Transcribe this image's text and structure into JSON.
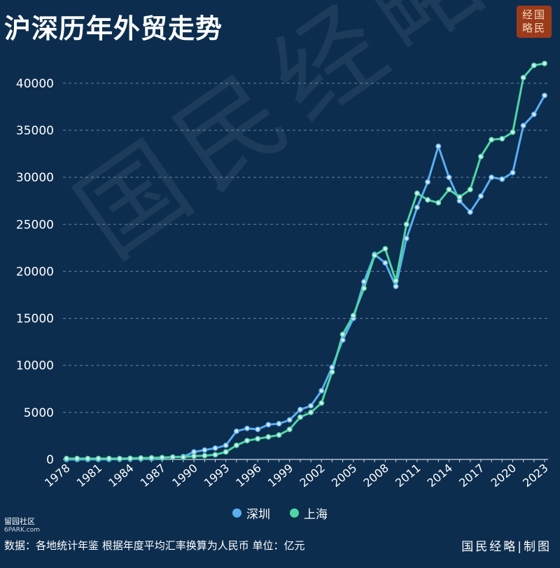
{
  "title": "沪深历年外贸走势",
  "logo_text": "经国略民",
  "watermark_text": "国民经略",
  "site_tag": {
    "line1": "留园社区",
    "line2": "6PARK.com"
  },
  "footer_source": "数据：各地统计年鉴 根据年度平均汇率换算为人民币 单位：亿元",
  "footer_credit": "国民经略|制图",
  "legend": [
    {
      "name": "深圳",
      "color": "#5aaef0"
    },
    {
      "name": "上海",
      "color": "#4fd6a5"
    }
  ],
  "chart_data": {
    "type": "line",
    "title": "沪深历年外贸走势",
    "xlabel": "",
    "ylabel": "",
    "unit": "亿元",
    "ylim": [
      0,
      42000
    ],
    "yticks": [
      0,
      5000,
      10000,
      15000,
      20000,
      25000,
      30000,
      35000,
      40000
    ],
    "xticks": [
      1978,
      1981,
      1984,
      1987,
      1990,
      1993,
      1996,
      1999,
      2002,
      2005,
      2008,
      2011,
      2014,
      2017,
      2020,
      2023
    ],
    "grid": true,
    "legend_position": "bottom",
    "x": [
      1978,
      1979,
      1980,
      1981,
      1982,
      1983,
      1984,
      1985,
      1986,
      1987,
      1988,
      1989,
      1990,
      1991,
      1992,
      1993,
      1994,
      1995,
      1996,
      1997,
      1998,
      1999,
      2000,
      2001,
      2002,
      2003,
      2004,
      2005,
      2006,
      2007,
      2008,
      2009,
      2010,
      2011,
      2012,
      2013,
      2014,
      2015,
      2016,
      2017,
      2018,
      2019,
      2020,
      2021,
      2022,
      2023
    ],
    "series": [
      {
        "name": "深圳",
        "color": "#5aaef0",
        "values": [
          1,
          1,
          5,
          10,
          15,
          30,
          50,
          80,
          100,
          150,
          250,
          300,
          800,
          1000,
          1200,
          1500,
          3000,
          3300,
          3200,
          3700,
          3800,
          4200,
          5300,
          5700,
          7300,
          9800,
          12700,
          15000,
          18900,
          21800,
          20900,
          18400,
          23500,
          26800,
          29500,
          33300,
          30000,
          27500,
          26300,
          28000,
          30000,
          29800,
          30500,
          35500,
          36700,
          38700
        ]
      },
      {
        "name": "上海",
        "color": "#4fd6a5",
        "values": [
          100,
          100,
          100,
          100,
          100,
          100,
          120,
          150,
          170,
          200,
          250,
          250,
          350,
          400,
          500,
          800,
          1500,
          2000,
          2200,
          2400,
          2600,
          3200,
          4500,
          5000,
          6000,
          9300,
          13300,
          15300,
          18200,
          21700,
          22400,
          19000,
          25000,
          28300,
          27600,
          27300,
          28700,
          27900,
          28700,
          32200,
          34000,
          34100,
          34800,
          40600,
          41900,
          42100
        ]
      }
    ]
  }
}
